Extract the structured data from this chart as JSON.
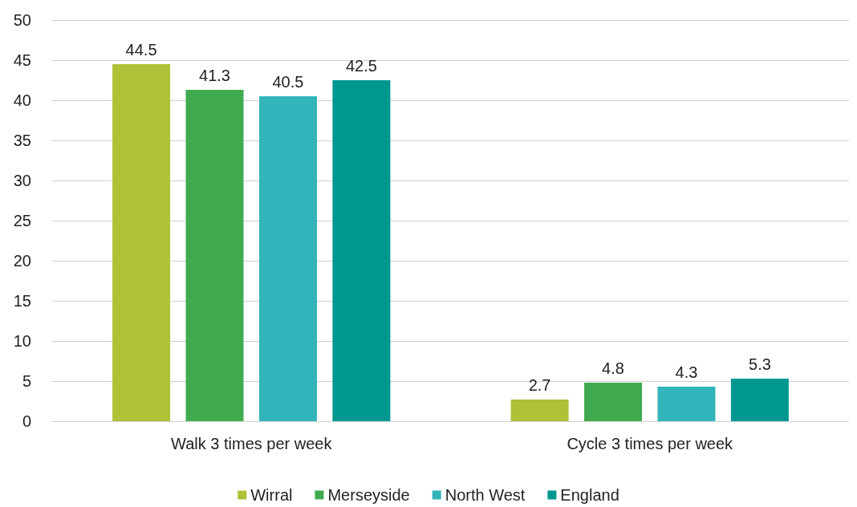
{
  "chart_data": {
    "type": "bar",
    "categories": [
      "Walk 3 times per week",
      "Cycle 3 times per week"
    ],
    "series": [
      {
        "name": "Wirral",
        "color": "#afc136",
        "values": [
          44.5,
          2.7
        ]
      },
      {
        "name": "Merseyside",
        "color": "#40ab4e",
        "values": [
          41.3,
          4.8
        ]
      },
      {
        "name": "North West",
        "color": "#31b4ba",
        "values": [
          40.5,
          4.3
        ]
      },
      {
        "name": "England",
        "color": "#009791",
        "values": [
          42.5,
          5.3
        ]
      }
    ],
    "ylim": [
      0,
      50
    ],
    "yticks": [
      0,
      5,
      10,
      15,
      20,
      25,
      30,
      35,
      40,
      45,
      50
    ],
    "grid": "y",
    "legend": "bottom",
    "data_labels": true
  }
}
